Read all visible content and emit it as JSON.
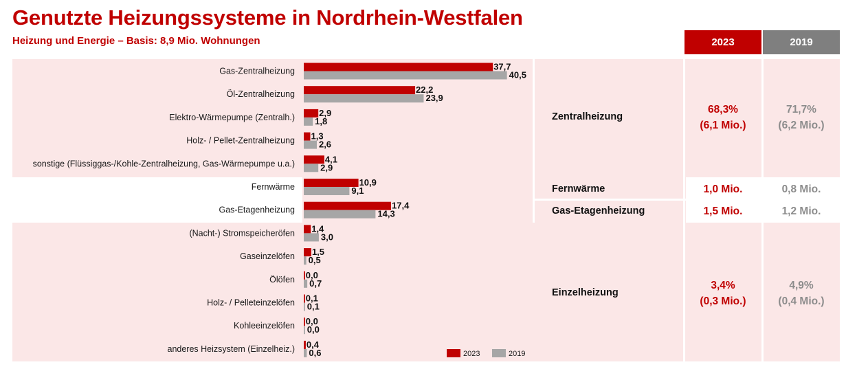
{
  "title": "Genutzte Heizungssysteme in Nordrhein-Westfalen",
  "subtitle": "Heizung und Energie – Basis: 8,9 Mio. Wohnungen",
  "year_headers": {
    "y2023": "2023",
    "y2019": "2019"
  },
  "colors": {
    "accent": "#c00000",
    "series_2023": "#c00000",
    "series_2019": "#a6a6a6",
    "band": "#fbe7e7",
    "header_2019": "#7f7f7f"
  },
  "groups": [
    {
      "label": "Zentralheizung",
      "pct_2023": "68,3%",
      "abs_2023": "(6,1 Mio.)",
      "pct_2019": "71,7%",
      "abs_2019": "(6,2 Mio.)"
    },
    {
      "label": "Fernwärme",
      "pct_2023": "1,0 Mio.",
      "pct_2019": "0,8 Mio."
    },
    {
      "label": "Gas-Etagenheizung",
      "pct_2023": "1,5 Mio.",
      "pct_2019": "1,2 Mio."
    },
    {
      "label": "Einzelheizung",
      "pct_2023": "3,4%",
      "abs_2023": "(0,3 Mio.)",
      "pct_2019": "4,9%",
      "abs_2019": "(0,4 Mio.)"
    }
  ],
  "chart_data": {
    "type": "bar",
    "orientation": "horizontal",
    "title": "Genutzte Heizungssysteme in Nordrhein-Westfalen",
    "unit": "%",
    "categories": [
      "Gas-Zentralheizung",
      "Öl-Zentralheizung",
      "Elektro-Wärmepumpe (Zentralh.)",
      "Holz- / Pellet-Zentralheizung",
      "sonstige (Flüssiggas-/Kohle-Zentralheizung, Gas-Wärmepumpe u.a.)",
      "Fernwärme",
      "Gas-Etagenheizung",
      "(Nacht-) Stromspeicheröfen",
      "Gaseinzelöfen",
      "Ölöfen",
      "Holz- / Pelleteinzelöfen",
      "Kohleeinzelöfen",
      "anderes Heizsystem (Einzelheiz.)"
    ],
    "series": [
      {
        "name": "2023",
        "color": "#c00000",
        "values": [
          37.7,
          22.2,
          2.9,
          1.3,
          4.1,
          10.9,
          17.4,
          1.4,
          1.5,
          0.0,
          0.1,
          0.0,
          0.4
        ],
        "labels": [
          "37,7",
          "22,2",
          "2,9",
          "1,3",
          "4,1",
          "10,9",
          "17,4",
          "1,4",
          "1,5",
          "0,0",
          "0,1",
          "0,0",
          "0,4"
        ]
      },
      {
        "name": "2019",
        "color": "#a6a6a6",
        "values": [
          40.5,
          23.9,
          1.8,
          2.6,
          2.9,
          9.1,
          14.3,
          3.0,
          0.5,
          0.7,
          0.1,
          0.0,
          0.6
        ],
        "labels": [
          "40,5",
          "23,9",
          "1,8",
          "2,6",
          "2,9",
          "9,1",
          "14,3",
          "3,0",
          "0,5",
          "0,7",
          "0,1",
          "0,0",
          "0,6"
        ]
      }
    ],
    "xlim": [
      0,
      40.5
    ],
    "legend": [
      "2023",
      "2019"
    ],
    "legend_position": "bottom-right"
  }
}
